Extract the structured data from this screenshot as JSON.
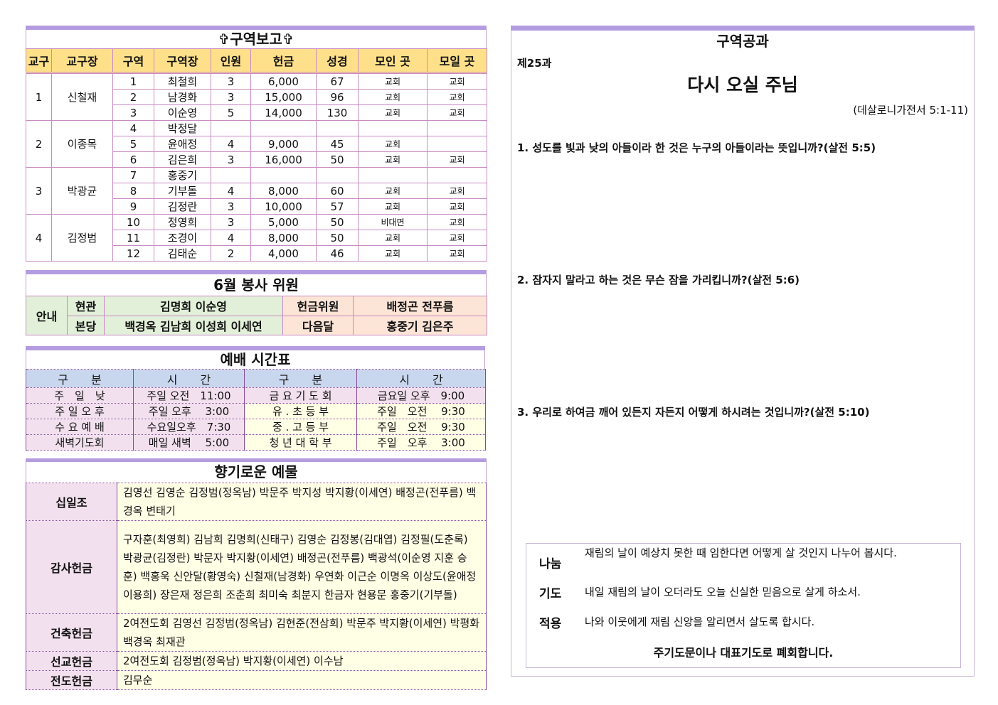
{
  "report": {
    "title": "✞구역보고✞",
    "headers": [
      "교구",
      "교구장",
      "구역",
      "구역장",
      "인원",
      "헌금",
      "성경",
      "모인 곳",
      "모일 곳"
    ],
    "groups": [
      {
        "parish": "1",
        "leader": "신철재",
        "rows": [
          [
            "1",
            "최철희",
            "3",
            "6,000",
            "67",
            "교회",
            "교회"
          ],
          [
            "2",
            "남경화",
            "3",
            "15,000",
            "96",
            "교회",
            "교회"
          ],
          [
            "3",
            "이순영",
            "5",
            "14,000",
            "130",
            "교회",
            "교회"
          ]
        ]
      },
      {
        "parish": "2",
        "leader": "이종목",
        "rows": [
          [
            "4",
            "박정달",
            "",
            "",
            "",
            "",
            ""
          ],
          [
            "5",
            "윤애정",
            "4",
            "9,000",
            "45",
            "교회",
            ""
          ],
          [
            "6",
            "김은희",
            "3",
            "16,000",
            "50",
            "교회",
            "교회"
          ]
        ]
      },
      {
        "parish": "3",
        "leader": "박광균",
        "rows": [
          [
            "7",
            "홍중기",
            "",
            "",
            "",
            "",
            ""
          ],
          [
            "8",
            "기부돌",
            "4",
            "8,000",
            "60",
            "교회",
            "교회"
          ],
          [
            "9",
            "김정란",
            "3",
            "10,000",
            "57",
            "교회",
            "교회"
          ]
        ]
      },
      {
        "parish": "4",
        "leader": "김정범",
        "rows": [
          [
            "10",
            "정영희",
            "3",
            "5,000",
            "50",
            "비대면",
            "교회"
          ],
          [
            "11",
            "조경이",
            "4",
            "8,000",
            "50",
            "교회",
            "교회"
          ],
          [
            "12",
            "김태순",
            "2",
            "4,000",
            "46",
            "교회",
            "교회"
          ]
        ]
      }
    ]
  },
  "volunteers": {
    "title": "6월 봉사 위원",
    "guide": "안내",
    "rows": [
      {
        "place": "현관",
        "names": "김명희 이순영",
        "role": "헌금위원",
        "role_names": "배정곤 전푸름"
      },
      {
        "place": "본당",
        "names": "백경옥 김남희 이성희 이세연",
        "role": "다음달",
        "role_names": "홍중기 김은주"
      }
    ]
  },
  "schedule": {
    "title": "예배 시간표",
    "headers": [
      "구　　분",
      "시　　간",
      "구　　분",
      "시　　간"
    ],
    "rows": [
      [
        "주　일　낮",
        "주일 오전　11:00",
        "금 요 기 도 회",
        "금요일 오후　9:00"
      ],
      [
        "주 일 오 후",
        "주일 오후　 3:00",
        "유 . 초 등 부",
        "주일　오전　 9:30"
      ],
      [
        "수 요 예 배",
        "수요일오후　7:30",
        "중 . 고 등 부",
        "주일　오전　 9:30"
      ],
      [
        "새벽기도회",
        "매일 새벽　 5:00",
        "청 년 대 학 부",
        "주일　오후　 3:00"
      ]
    ]
  },
  "offerings": {
    "title": "향기로운 예물",
    "rows": [
      {
        "label": "십일조",
        "text": "김영선 김영순 김정범(정옥남) 박문주 박지성 박지황(이세연) 배정곤(전푸름) 백경옥 변태기"
      },
      {
        "label": "감사헌금",
        "text": "구자훈(최영희) 김남희 김명희(신태구) 김영순 김정봉(김대엽) 김정필(도춘록) 박광균(김정란) 박문자 박지황(이세연) 배정곤(전푸름) 백광석(이순영 지훈 승훈) 백홍욱 신안달(황영숙) 신철재(남경화) 우연화 이근순 이명옥 이상도(윤애정 이용희) 장은재 정은희 조춘희 최미숙 최분지 한금자 현용문 홍중기(기부돌)"
      },
      {
        "label": "건축헌금",
        "text": "2여전도회 김영선 김정범(정옥남) 김현준(전삼희) 박문주 박지황(이세연) 박평화 백경옥 최재관"
      },
      {
        "label": "선교헌금",
        "text": "2여전도회 김정범(정옥남) 박지황(이세연) 이수남"
      },
      {
        "label": "전도헌금",
        "text": "김무순"
      }
    ]
  },
  "lesson": {
    "title": "구역공과",
    "number": "제25과",
    "subject": "다시 오실 주님",
    "scripture": "(데살로니가전서 5:1-11)",
    "questions": [
      "1. 성도를 빛과 낮의 아들이라 한 것은 누구의 아들이라는 뜻입니까?(살전 5:5)",
      "2. 잠자지 말라고 하는 것은 무슨 잠을 가리킵니까?(살전 5:6)",
      "3. 우리로 하여금 깨어 있든지 자든지 어떻게 하시려는 것입니까?(살전 5:10)"
    ],
    "sharing_label": "나눔",
    "sharing": "재림의 날이 예상치 못한 때 임한다면 어떻게 살 것인지 나누어 봅시다.",
    "prayer_label": "기도",
    "prayer": "내일 재림의 날이 오더라도 오늘 신실한 믿음으로 살게 하소서.",
    "apply_label": "적용",
    "apply": "나와 이웃에게 재림 신앙을 알리면서 살도록 합시다.",
    "closing": "주기도문이나 대표기도로 폐회합니다."
  },
  "colors": {
    "accent_bar": "#b49ce0",
    "header_yellow": "#ffe08a",
    "green": "#e2efd9",
    "orange": "#fce4d6",
    "blue": "#c9d7ee",
    "pink": "#f2e0ee"
  }
}
